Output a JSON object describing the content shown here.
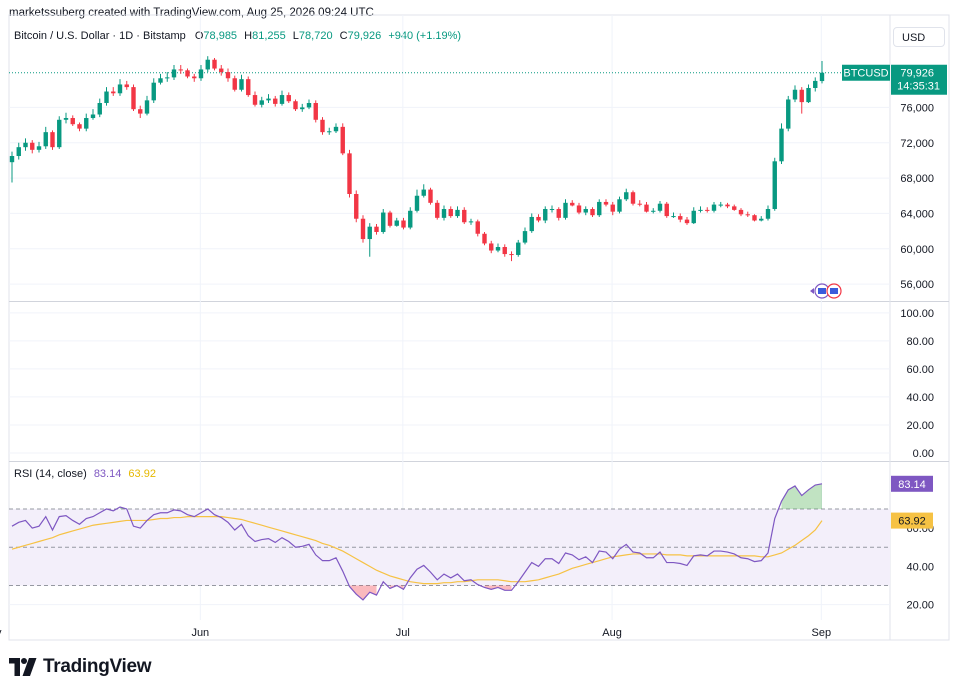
{
  "header": {
    "text": "marketssuberg created with TradingView.com, Aug 25, 2026 09:24 UTC"
  },
  "legend": {
    "symbol": "Bitcoin / U.S. Dollar · 1D · Bitstamp",
    "open_label": "O",
    "open": "78,985",
    "high_label": "H",
    "high": "81,255",
    "low_label": "L",
    "low": "78,720",
    "close_label": "C",
    "close": "79,926",
    "change": "+940 (+1.19%)"
  },
  "currency_button": "USD",
  "price_tag": {
    "symbol": "BTCUSD",
    "price": "79,926",
    "countdown": "14:35:31"
  },
  "rsi_legend": {
    "label": "RSI (14, close)",
    "rsi": "83.14",
    "ma": "63.92"
  },
  "colors": {
    "up": "#089981",
    "down": "#f23645",
    "rsi_line": "#7e57c2",
    "rsi_ma": "#f6c244",
    "band_fill": "#f3effa",
    "tag": "#089981"
  },
  "brand": {
    "logo_icon": "tradingview-logo-icon",
    "name": "TradingView"
  },
  "chart_data": [
    {
      "type": "candlestick",
      "title": "Bitcoin / U.S. Dollar · 1D · Bitstamp",
      "y_ticks": [
        "56,000",
        "60,000",
        "64,000",
        "68,000",
        "72,000",
        "76,000"
      ],
      "y_tick_values": [
        56000,
        60000,
        64000,
        68000,
        72000,
        76000
      ],
      "ylim": [
        54200,
        82500
      ],
      "x_ticks": [
        "May",
        "Jun",
        "Jul",
        "Aug",
        "Sep"
      ],
      "x_tick_index": [
        -3.1,
        27.9,
        57.9,
        88.9,
        119.9
      ],
      "grid": true,
      "series": [
        {
          "name": "BTCUSD",
          "close": [
            70500,
            71500,
            72000,
            71200,
            71600,
            73200,
            71500,
            74600,
            74800,
            74100,
            73600,
            74800,
            75200,
            76500,
            77800,
            77600,
            78600,
            78300,
            75800,
            75300,
            76800,
            78800,
            79300,
            79400,
            80300,
            80200,
            79500,
            79300,
            80300,
            81400,
            80400,
            80000,
            79300,
            78000,
            79200,
            77400,
            76300,
            76800,
            77000,
            76400,
            77400,
            76700,
            75800,
            76000,
            76500,
            74600,
            73200,
            73300,
            73800,
            70800,
            66200,
            63400,
            61100,
            62500,
            61900,
            64100,
            62600,
            63200,
            62400,
            64300,
            66000,
            66700,
            65200,
            63500,
            64500,
            63700,
            64400,
            63000,
            63100,
            61700,
            60600,
            59800,
            60200,
            59400,
            59300,
            60700,
            62000,
            63600,
            63200,
            64500,
            64500,
            63500,
            65200,
            64900,
            64100,
            64500,
            63800,
            65300,
            65000,
            64200,
            65600,
            66400,
            65100,
            65000,
            64200,
            64300,
            65100,
            63700,
            63700,
            63300,
            62900,
            64300,
            64400,
            64300,
            65000,
            65000,
            64800,
            64400,
            63900,
            63800,
            63200,
            63400,
            64500,
            69900,
            73600,
            76900,
            78000,
            76600,
            78200,
            79000,
            79926
          ],
          "open": [
            69800,
            70500,
            71500,
            72000,
            71200,
            71600,
            73200,
            71500,
            74600,
            74800,
            74100,
            73600,
            74800,
            75200,
            76500,
            77800,
            77600,
            78600,
            78300,
            75800,
            75300,
            76800,
            78800,
            79300,
            79400,
            80300,
            80200,
            79500,
            79300,
            80300,
            81400,
            80400,
            80000,
            79300,
            78000,
            79200,
            77400,
            76300,
            76800,
            77000,
            76400,
            77400,
            76700,
            75800,
            76000,
            76500,
            74600,
            73200,
            73300,
            73800,
            70800,
            66200,
            63400,
            61100,
            62500,
            61900,
            64100,
            62600,
            63200,
            62400,
            64300,
            66000,
            66700,
            65200,
            63500,
            64500,
            63700,
            64400,
            63000,
            63100,
            61700,
            60600,
            59800,
            60200,
            59400,
            59300,
            60700,
            62000,
            63600,
            63200,
            64500,
            64500,
            63500,
            65200,
            64900,
            64100,
            64500,
            63800,
            65300,
            65000,
            64200,
            65600,
            66400,
            65100,
            65000,
            64200,
            64300,
            65100,
            63700,
            63700,
            63300,
            62900,
            64300,
            64400,
            64300,
            65000,
            65000,
            64800,
            64400,
            63900,
            63800,
            63200,
            63400,
            64500,
            69900,
            73600,
            76900,
            78000,
            76600,
            78200,
            78985
          ],
          "high": [
            71000,
            72000,
            72500,
            72300,
            72100,
            73800,
            73400,
            75000,
            75400,
            75100,
            74300,
            75300,
            75800,
            77000,
            78300,
            78300,
            79200,
            79000,
            78600,
            76200,
            77300,
            79300,
            79800,
            80000,
            80800,
            80800,
            80400,
            79800,
            80800,
            81800,
            81600,
            80800,
            80400,
            79600,
            79700,
            79500,
            77800,
            77200,
            77500,
            77300,
            77900,
            77700,
            76900,
            76400,
            76900,
            76800,
            74900,
            73700,
            74200,
            74200,
            71200,
            66600,
            63800,
            62900,
            62800,
            64500,
            64300,
            63500,
            63500,
            64700,
            66700,
            67300,
            66900,
            65500,
            64900,
            64800,
            64800,
            64700,
            63400,
            63300,
            61900,
            60900,
            60600,
            60500,
            59700,
            61000,
            62400,
            64000,
            63900,
            64800,
            64900,
            64700,
            65600,
            65500,
            65200,
            64800,
            64700,
            65600,
            65600,
            65300,
            65900,
            66800,
            66600,
            65500,
            65300,
            64600,
            65400,
            65300,
            64100,
            64000,
            63600,
            64700,
            64800,
            64700,
            65300,
            65300,
            65200,
            65000,
            64600,
            64200,
            63900,
            63700,
            64900,
            70300,
            74200,
            77300,
            78500,
            78300,
            78600,
            79400,
            81255
          ],
          "low": [
            67500,
            70100,
            71100,
            70800,
            70900,
            71300,
            71200,
            71300,
            74200,
            73900,
            73300,
            73300,
            74600,
            74900,
            76200,
            77300,
            77300,
            78000,
            75600,
            74800,
            75100,
            76500,
            78600,
            78900,
            79100,
            79800,
            79300,
            78900,
            79000,
            80000,
            80200,
            79600,
            78900,
            77800,
            77800,
            77200,
            76100,
            76000,
            76500,
            76100,
            76200,
            76500,
            75600,
            75500,
            75800,
            74300,
            72900,
            72900,
            73100,
            70600,
            65800,
            63000,
            60700,
            59100,
            61600,
            61700,
            62400,
            62500,
            62200,
            62200,
            64100,
            65800,
            65000,
            63300,
            63200,
            63500,
            63500,
            62800,
            62700,
            61400,
            60400,
            59500,
            59600,
            59100,
            58600,
            59100,
            60500,
            61800,
            63000,
            62900,
            64100,
            63200,
            63300,
            64800,
            63900,
            63800,
            63600,
            63600,
            64800,
            63800,
            64000,
            65400,
            64900,
            64800,
            64100,
            64000,
            64100,
            63500,
            63500,
            63000,
            62700,
            62800,
            64100,
            64100,
            64100,
            64700,
            64600,
            64300,
            63700,
            63600,
            63100,
            63100,
            63200,
            64300,
            69600,
            73300,
            76600,
            75300,
            76500,
            77800,
            78720
          ]
        }
      ]
    },
    {
      "type": "line",
      "title": "",
      "y_ticks": [
        "0.00",
        "20.00",
        "40.00",
        "60.00",
        "80.00",
        "100.00"
      ],
      "y_tick_values": [
        0,
        20,
        40,
        60,
        80,
        100
      ],
      "ylim": [
        -5,
        107
      ],
      "grid": true,
      "series": []
    },
    {
      "type": "line",
      "title": "RSI (14, close)",
      "y_ticks": [
        "20.00",
        "40.00",
        "60.00"
      ],
      "y_tick_values": [
        20,
        40,
        60
      ],
      "ylim": [
        12,
        94
      ],
      "bands": [
        30,
        50,
        70
      ],
      "last_value_labels": [
        "83.14",
        "63.92"
      ],
      "series": [
        {
          "name": "RSI",
          "values": [
            61.0,
            63.0,
            64.0,
            60.0,
            61.0,
            66.0,
            59.0,
            66.0,
            66.5,
            64.0,
            62.0,
            65.0,
            66.0,
            68.0,
            70.0,
            69.0,
            71.0,
            70.0,
            61.0,
            60.0,
            64.0,
            67.0,
            68.0,
            68.0,
            69.5,
            69.0,
            67.0,
            66.0,
            68.0,
            70.0,
            67.0,
            65.5,
            63.0,
            59.0,
            62.0,
            56.0,
            53.0,
            54.0,
            54.5,
            52.5,
            55.0,
            53.0,
            50.0,
            50.5,
            51.5,
            46.0,
            43.0,
            43.0,
            44.5,
            37.5,
            29.5,
            25.5,
            22.5,
            26.5,
            25.0,
            32.0,
            28.5,
            30.0,
            28.0,
            34.0,
            38.5,
            40.5,
            37.0,
            33.0,
            36.0,
            34.0,
            36.0,
            32.5,
            33.0,
            30.5,
            29.0,
            28.0,
            29.0,
            27.5,
            27.5,
            32.0,
            37.0,
            42.0,
            40.0,
            44.0,
            44.0,
            41.5,
            47.0,
            46.0,
            43.5,
            45.0,
            42.0,
            48.0,
            47.5,
            44.0,
            49.0,
            51.5,
            47.5,
            47.0,
            44.5,
            44.5,
            47.5,
            42.0,
            42.0,
            41.5,
            40.5,
            45.5,
            46.0,
            45.5,
            48.0,
            48.0,
            47.5,
            46.5,
            44.5,
            44.0,
            42.5,
            43.0,
            47.0,
            65.0,
            74.0,
            80.0,
            82.0,
            77.0,
            80.0,
            82.5,
            83.14
          ]
        },
        {
          "name": "RSI MA",
          "values": [
            49.0,
            50.0,
            51.0,
            52.0,
            53.0,
            54.0,
            55.0,
            56.5,
            57.5,
            58.5,
            59.5,
            60.5,
            61.5,
            62.0,
            62.5,
            63.0,
            63.5,
            64.0,
            64.0,
            64.0,
            64.0,
            64.5,
            65.0,
            65.0,
            65.5,
            65.5,
            66.0,
            66.0,
            66.0,
            66.0,
            66.0,
            66.0,
            65.5,
            65.0,
            64.5,
            63.5,
            62.5,
            61.5,
            60.5,
            59.5,
            58.5,
            57.5,
            56.5,
            55.5,
            54.5,
            53.5,
            52.0,
            51.0,
            49.5,
            48.0,
            46.0,
            44.0,
            42.0,
            40.0,
            38.0,
            36.5,
            35.0,
            34.0,
            33.0,
            32.0,
            31.5,
            31.0,
            31.0,
            31.0,
            31.5,
            31.5,
            32.0,
            32.0,
            32.5,
            33.0,
            33.0,
            33.0,
            33.0,
            32.5,
            32.0,
            32.0,
            32.0,
            32.5,
            33.0,
            34.0,
            35.0,
            36.0,
            37.5,
            39.0,
            40.0,
            41.0,
            42.0,
            43.0,
            44.0,
            45.0,
            45.5,
            46.0,
            46.5,
            46.5,
            46.5,
            46.5,
            46.5,
            46.0,
            46.0,
            46.0,
            45.5,
            45.5,
            45.5,
            45.5,
            45.5,
            45.5,
            45.5,
            45.5,
            45.5,
            45.5,
            45.5,
            45.0,
            45.0,
            46.0,
            47.0,
            49.0,
            51.0,
            53.5,
            56.0,
            59.0,
            63.92
          ]
        }
      ]
    }
  ]
}
